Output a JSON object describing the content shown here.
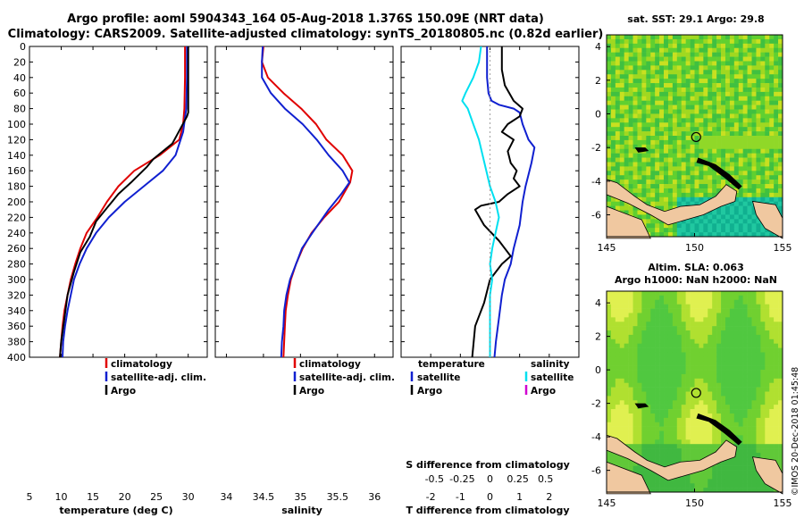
{
  "title_line1": "Argo profile: aoml 5904343_164 05-Aug-2018 1.376S 150.09E (NRT data)",
  "title_line2": "Climatology: CARS2009. Satellite-adjusted climatology: synTS_20180805.nc (0.82d earlier)",
  "timestamp": "©IMOS 20-Dec-2018 01:45:48",
  "colors": {
    "climatology": "#e00000",
    "satellite": "#1020d0",
    "argo": "#000000",
    "cyan": "#00e0f0",
    "magenta": "#d000d0",
    "land": "#f0c8a0"
  },
  "chart_data": [
    {
      "id": "temperature",
      "type": "line",
      "xlabel": "temperature (deg C)",
      "ylabel": "",
      "xlim": [
        5,
        33
      ],
      "ylim": [
        400,
        0
      ],
      "xticks": [
        "5",
        "10",
        "15",
        "20",
        "25",
        "30"
      ],
      "yticks": [
        "0",
        "20",
        "40",
        "60",
        "80",
        "100",
        "120",
        "140",
        "160",
        "180",
        "200",
        "220",
        "240",
        "260",
        "280",
        "300",
        "320",
        "340",
        "360",
        "380",
        "400"
      ],
      "legend": [
        "climatology",
        "satellite-adj. clim.",
        "Argo"
      ],
      "series": [
        {
          "name": "climatology",
          "points": [
            [
              29.5,
              0
            ],
            [
              29.5,
              40
            ],
            [
              29.4,
              80
            ],
            [
              29.2,
              100
            ],
            [
              28.6,
              120
            ],
            [
              25.5,
              140
            ],
            [
              21.5,
              160
            ],
            [
              19,
              180
            ],
            [
              17.2,
              200
            ],
            [
              15.7,
              220
            ],
            [
              14,
              240
            ],
            [
              13,
              260
            ],
            [
              12.2,
              280
            ],
            [
              11.5,
              300
            ],
            [
              11,
              320
            ],
            [
              10.5,
              340
            ],
            [
              10.2,
              360
            ],
            [
              10,
              380
            ],
            [
              9.8,
              400
            ]
          ]
        },
        {
          "name": "satellite-adj. clim.",
          "points": [
            [
              29.8,
              0
            ],
            [
              29.8,
              40
            ],
            [
              29.7,
              80
            ],
            [
              29.2,
              110
            ],
            [
              28,
              140
            ],
            [
              26,
              160
            ],
            [
              23,
              180
            ],
            [
              20,
              200
            ],
            [
              17.5,
              220
            ],
            [
              15.5,
              240
            ],
            [
              14,
              260
            ],
            [
              12.9,
              280
            ],
            [
              12,
              300
            ],
            [
              11.5,
              320
            ],
            [
              11,
              340
            ],
            [
              10.6,
              360
            ],
            [
              10.3,
              380
            ],
            [
              10.2,
              400
            ]
          ]
        },
        {
          "name": "Argo",
          "points": [
            [
              30,
              0
            ],
            [
              30,
              40
            ],
            [
              30,
              85
            ],
            [
              29.8,
              90
            ],
            [
              28.5,
              110
            ],
            [
              27.5,
              125
            ],
            [
              26,
              135
            ],
            [
              24.5,
              145
            ],
            [
              23.5,
              155
            ],
            [
              21,
              175
            ],
            [
              19,
              190
            ],
            [
              17.5,
              205
            ],
            [
              15.5,
              225
            ],
            [
              14.5,
              245
            ],
            [
              13,
              265
            ],
            [
              12,
              290
            ],
            [
              11,
              320
            ],
            [
              10.5,
              350
            ],
            [
              10,
              380
            ],
            [
              9.8,
              400
            ]
          ]
        }
      ]
    },
    {
      "id": "salinity",
      "type": "line",
      "xlabel": "salinity",
      "ylabel": "",
      "xlim": [
        33.85,
        36.25
      ],
      "ylim": [
        400,
        0
      ],
      "xticks": [
        "34",
        "34.5",
        "35",
        "35.5",
        "36"
      ],
      "legend": [
        "climatology",
        "satellite-adj. clim.",
        "Argo"
      ],
      "series": [
        {
          "name": "climatology",
          "points": [
            [
              34.5,
              0
            ],
            [
              34.48,
              20
            ],
            [
              34.56,
              40
            ],
            [
              34.77,
              60
            ],
            [
              35.01,
              80
            ],
            [
              35.21,
              100
            ],
            [
              35.35,
              120
            ],
            [
              35.57,
              140
            ],
            [
              35.7,
              160
            ],
            [
              35.67,
              175
            ],
            [
              35.52,
              200
            ],
            [
              35.32,
              220
            ],
            [
              35.15,
              240
            ],
            [
              35.03,
              260
            ],
            [
              34.94,
              280
            ],
            [
              34.87,
              300
            ],
            [
              34.83,
              320
            ],
            [
              34.8,
              340
            ],
            [
              34.79,
              360
            ],
            [
              34.78,
              380
            ],
            [
              34.77,
              400
            ]
          ]
        },
        {
          "name": "satellite-adj. clim.",
          "points": [
            [
              34.49,
              0
            ],
            [
              34.48,
              20
            ],
            [
              34.48,
              40
            ],
            [
              34.6,
              60
            ],
            [
              34.79,
              80
            ],
            [
              35.03,
              100
            ],
            [
              35.22,
              120
            ],
            [
              35.38,
              140
            ],
            [
              35.57,
              160
            ],
            [
              35.66,
              175
            ],
            [
              35.55,
              190
            ],
            [
              35.38,
              210
            ],
            [
              35.16,
              240
            ],
            [
              35.02,
              260
            ],
            [
              34.94,
              280
            ],
            [
              34.86,
              300
            ],
            [
              34.81,
              320
            ],
            [
              34.78,
              340
            ],
            [
              34.77,
              360
            ],
            [
              34.75,
              380
            ],
            [
              34.74,
              400
            ]
          ]
        }
      ]
    },
    {
      "id": "difference",
      "type": "line",
      "xlabel": "T difference from climatology",
      "xlabel_top": "S difference from climatology",
      "xlim": [
        -3,
        3
      ],
      "ylim": [
        400,
        0
      ],
      "xticks": [
        "-2",
        "-1",
        "0",
        "1",
        "2"
      ],
      "sticks": [
        "-0.5",
        "-0.25",
        "0",
        "0.25",
        "0.5"
      ],
      "legend_temperature_title": "temperature",
      "legend_temperature": [
        "satellite",
        "Argo"
      ],
      "legend_salinity_title": "salinity",
      "legend_salinity": [
        "satellite",
        "Argo"
      ],
      "series": [
        {
          "name": "T satellite",
          "points": [
            [
              -0.1,
              0
            ],
            [
              -0.1,
              40
            ],
            [
              -0.05,
              60
            ],
            [
              0.05,
              70
            ],
            [
              0.3,
              75
            ],
            [
              0.8,
              80
            ],
            [
              1,
              85
            ],
            [
              1.1,
              100
            ],
            [
              1.3,
              120
            ],
            [
              1.5,
              130
            ],
            [
              1.4,
              150
            ],
            [
              1.2,
              180
            ],
            [
              1.1,
              200
            ],
            [
              1,
              230
            ],
            [
              0.8,
              260
            ],
            [
              0.7,
              280
            ],
            [
              0.5,
              300
            ],
            [
              0.4,
              320
            ],
            [
              0.3,
              350
            ],
            [
              0.2,
              380
            ],
            [
              0.15,
              400
            ]
          ]
        },
        {
          "name": "T Argo",
          "points": [
            [
              0.4,
              0
            ],
            [
              0.4,
              30
            ],
            [
              0.5,
              50
            ],
            [
              0.8,
              70
            ],
            [
              1.1,
              80
            ],
            [
              1,
              90
            ],
            [
              0.6,
              100
            ],
            [
              0.4,
              110
            ],
            [
              0.8,
              120
            ],
            [
              0.6,
              135
            ],
            [
              0.7,
              150
            ],
            [
              0.9,
              160
            ],
            [
              0.8,
              170
            ],
            [
              1,
              180
            ],
            [
              0.6,
              190
            ],
            [
              0.3,
              200
            ],
            [
              -0.3,
              205
            ],
            [
              -0.5,
              210
            ],
            [
              -0.2,
              230
            ],
            [
              0.3,
              250
            ],
            [
              0.5,
              260
            ],
            [
              0.7,
              270
            ],
            [
              0.4,
              280
            ],
            [
              0,
              300
            ],
            [
              -0.2,
              330
            ],
            [
              -0.5,
              360
            ],
            [
              -0.6,
              400
            ]
          ]
        },
        {
          "name": "S satellite",
          "points": [
            [
              -0.08,
              0
            ],
            [
              -0.1,
              20
            ],
            [
              -0.15,
              40
            ],
            [
              -0.22,
              60
            ],
            [
              -0.25,
              70
            ],
            [
              -0.2,
              80
            ],
            [
              -0.15,
              100
            ],
            [
              -0.1,
              120
            ],
            [
              -0.05,
              150
            ],
            [
              0,
              180
            ],
            [
              0.05,
              200
            ],
            [
              0.08,
              220
            ],
            [
              0.05,
              240
            ],
            [
              0.02,
              260
            ],
            [
              0,
              280
            ],
            [
              0.02,
              300
            ],
            [
              0,
              320
            ],
            [
              0,
              340
            ],
            [
              0,
              360
            ],
            [
              0,
              380
            ],
            [
              0,
              400
            ]
          ]
        }
      ]
    }
  ],
  "maps": [
    {
      "id": "sst",
      "title": "sat. SST: 29.1 Argo: 29.8",
      "xticks": [
        "145",
        "150",
        "155"
      ],
      "yticks": [
        "4",
        "2",
        "0",
        "-2",
        "-4",
        "-6"
      ]
    },
    {
      "id": "sla",
      "title": "Altim. SLA: 0.063",
      "subtitle": "Argo h1000: NaN h2000: NaN",
      "xticks": [
        "145",
        "150",
        "155"
      ],
      "yticks": [
        "4",
        "2",
        "0",
        "-2",
        "-4",
        "-6"
      ]
    }
  ]
}
